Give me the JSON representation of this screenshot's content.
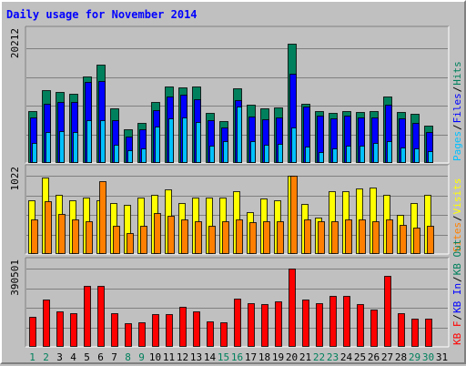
{
  "title": "Daily usage for November 2014",
  "colors": {
    "background": "#c0c0c0",
    "plot_background": "#c0c0c0",
    "grid": "#808080",
    "hits": "#00805c",
    "files": "#0000ff",
    "pages": "#00c0ff",
    "visits": "#ffff00",
    "sites": "#ff8000",
    "kb_in": "#0000ff",
    "kb_out": "#00805c",
    "kb_f": "#ff0000",
    "weekday_label": "#000000",
    "weekend_label": "#00805c"
  },
  "chart_data": [
    {
      "type": "bar",
      "panel": "hits-files-pages",
      "y_tick": "20212",
      "ylim": [
        0,
        20212
      ],
      "grid": true,
      "legend_placement": "right",
      "legend": [
        {
          "text": "Pages",
          "color_key": "pages"
        },
        {
          "text": "Files",
          "color_key": "files"
        },
        {
          "text": "Hits",
          "color_key": "hits"
        }
      ],
      "categories": [
        "1",
        "2",
        "3",
        "4",
        "5",
        "6",
        "7",
        "8",
        "9",
        "10",
        "11",
        "12",
        "13",
        "14",
        "15",
        "16",
        "17",
        "18",
        "19",
        "20",
        "21",
        "22",
        "23",
        "24",
        "25",
        "26",
        "27",
        "28",
        "29",
        "30",
        "31"
      ],
      "series": [
        {
          "name": "Hits",
          "color_key": "hits",
          "values": [
            9200,
            12800,
            12500,
            12200,
            15200,
            17400,
            9600,
            6000,
            7000,
            10700,
            13400,
            13300,
            13400,
            8900,
            7300,
            13100,
            10200,
            9600,
            9800,
            21000,
            10500,
            9200,
            8800,
            9200,
            9000,
            9100,
            11700,
            9000,
            8700,
            6500,
            0
          ]
        },
        {
          "name": "Files",
          "color_key": "files",
          "values": [
            8000,
            10500,
            10700,
            10800,
            14200,
            14500,
            7600,
            4700,
            5900,
            9300,
            11700,
            12100,
            11300,
            7500,
            6300,
            11100,
            8200,
            7700,
            8100,
            15800,
            9900,
            8300,
            7800,
            8300,
            8000,
            8100,
            10300,
            7800,
            7000,
            5400,
            0
          ]
        },
        {
          "name": "Pages",
          "color_key": "pages",
          "values": [
            3500,
            5400,
            5600,
            5500,
            7500,
            7500,
            3200,
            2200,
            2600,
            6400,
            7800,
            8000,
            7200,
            3100,
            3900,
            10000,
            3800,
            3200,
            3300,
            6200,
            2900,
            2000,
            2500,
            3100,
            3100,
            3500,
            3800,
            2700,
            2600,
            2100,
            0
          ]
        }
      ]
    },
    {
      "type": "bar",
      "panel": "visits-sites",
      "y_tick": "1022",
      "ylim": [
        0,
        1022
      ],
      "grid": true,
      "legend_placement": "right",
      "legend": [
        {
          "text": "Sites",
          "color_key": "sites"
        },
        {
          "text": "Visits",
          "color_key": "visits"
        }
      ],
      "categories": [
        "1",
        "2",
        "3",
        "4",
        "5",
        "6",
        "7",
        "8",
        "9",
        "10",
        "11",
        "12",
        "13",
        "14",
        "15",
        "16",
        "17",
        "18",
        "19",
        "20",
        "21",
        "22",
        "23",
        "24",
        "25",
        "26",
        "27",
        "28",
        "29",
        "30",
        "31"
      ],
      "series": [
        {
          "name": "Visits",
          "color_key": "visits",
          "values": [
            700,
            1000,
            770,
            700,
            740,
            700,
            670,
            640,
            740,
            770,
            840,
            660,
            740,
            740,
            740,
            820,
            550,
            720,
            700,
            1022,
            650,
            480,
            820,
            820,
            850,
            870,
            770,
            510,
            670,
            770,
            0
          ]
        },
        {
          "name": "Sites",
          "color_key": "sites",
          "values": [
            450,
            690,
            520,
            450,
            430,
            950,
            370,
            270,
            370,
            530,
            500,
            450,
            430,
            370,
            430,
            450,
            420,
            430,
            430,
            1022,
            450,
            430,
            430,
            450,
            450,
            430,
            450,
            380,
            350,
            370,
            0
          ]
        }
      ]
    },
    {
      "type": "bar",
      "panel": "kbf-kbin-kbout",
      "y_tick": "390501",
      "ylim": [
        0,
        390501
      ],
      "grid": true,
      "legend_placement": "right",
      "legend": [
        {
          "text": "KB F",
          "color_key": "kb_f"
        },
        {
          "text": "KB In",
          "color_key": "kb_in"
        },
        {
          "text": "KB Out",
          "color_key": "kb_out"
        }
      ],
      "categories": [
        "1",
        "2",
        "3",
        "4",
        "5",
        "6",
        "7",
        "8",
        "9",
        "10",
        "11",
        "12",
        "13",
        "14",
        "15",
        "16",
        "17",
        "18",
        "19",
        "20",
        "21",
        "22",
        "23",
        "24",
        "25",
        "26",
        "27",
        "28",
        "29",
        "30",
        "31"
      ],
      "series": [
        {
          "name": "KB F",
          "color_key": "kb_f",
          "values": [
            151000,
            238000,
            175000,
            166000,
            305000,
            305000,
            168000,
            118000,
            123000,
            165000,
            165000,
            200000,
            178000,
            127000,
            121000,
            242000,
            220000,
            214000,
            227000,
            390501,
            236000,
            219000,
            253000,
            256000,
            214000,
            184000,
            355000,
            168000,
            143000,
            139000,
            0
          ]
        }
      ]
    }
  ]
}
